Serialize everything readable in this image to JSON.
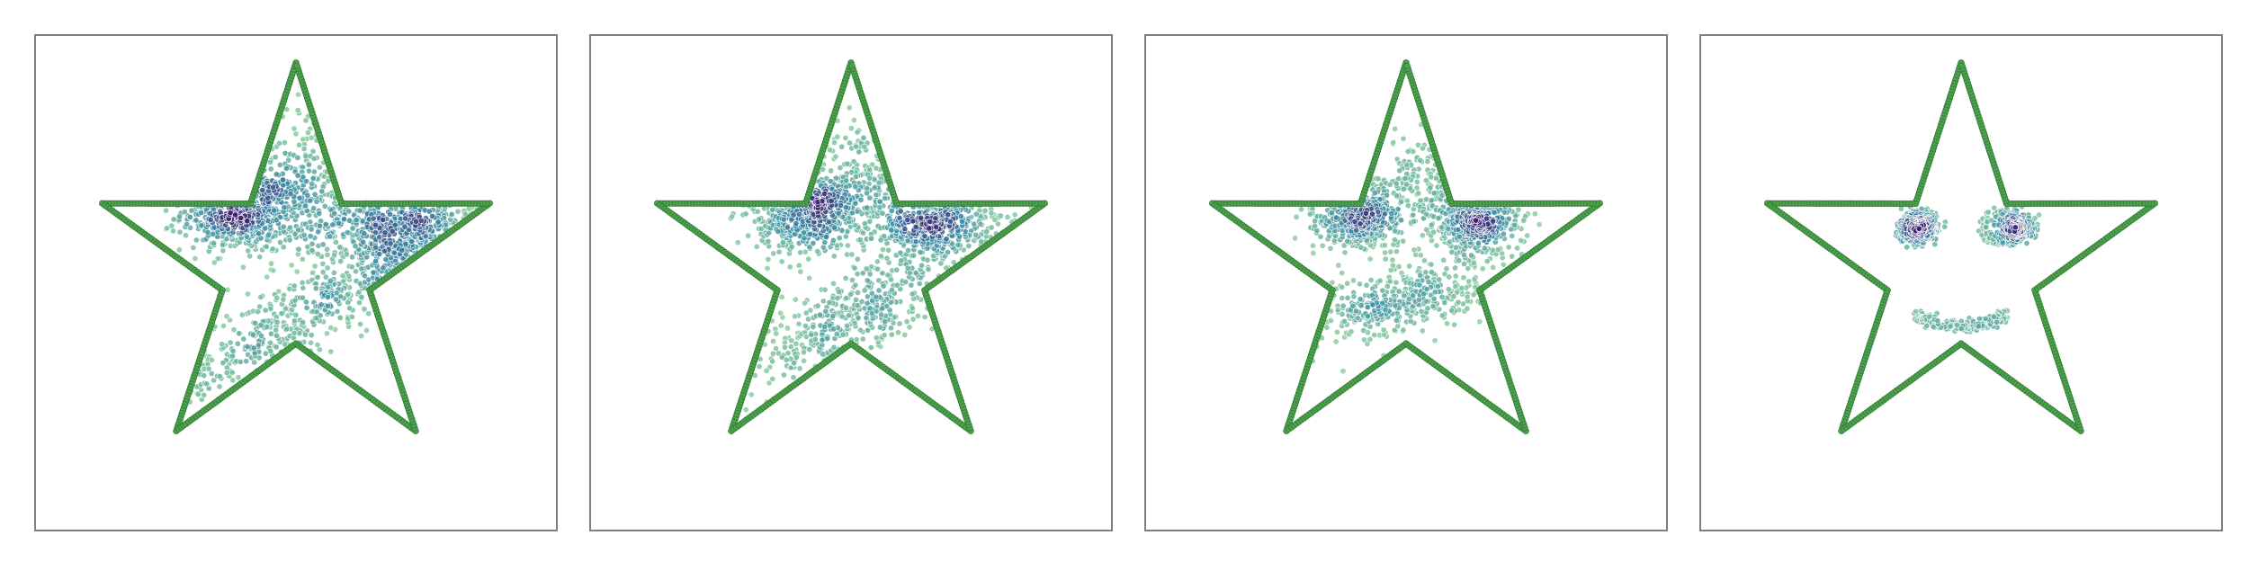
{
  "colors": {
    "outline_fill": "#4fa04f",
    "outline_edge": "#2e7d32",
    "density_low": "#8fcf9e",
    "density_mid": "#3b8ea5",
    "density_high": "#3b1c6e",
    "frame": "#7f7f7f"
  },
  "chart_data": [
    {
      "type": "scatter",
      "title": "",
      "xlabel": "",
      "ylabel": "",
      "xlim": [
        -1.3,
        1.3
      ],
      "ylim": [
        -1.25,
        1.25
      ],
      "grid": false,
      "legend": "none",
      "outline": {
        "shape": "five-point-star",
        "outer_radius": 1.0,
        "inner_radius": 0.38
      },
      "clusters": [
        {
          "cx": -0.26,
          "cy": 0.27,
          "sx": 0.15,
          "sy": 0.1,
          "n": 520
        },
        {
          "cx": 0.5,
          "cy": 0.2,
          "sx": 0.2,
          "sy": 0.12,
          "n": 520
        },
        {
          "cx": 0.0,
          "cy": -0.25,
          "sx": 0.38,
          "sy": 0.1,
          "n": 420,
          "tilt": 0.55
        },
        {
          "cx": 0.15,
          "cy": 0.45,
          "sx": 0.22,
          "sy": 0.18,
          "n": 200
        }
      ]
    },
    {
      "type": "scatter",
      "title": "",
      "xlabel": "",
      "ylabel": "",
      "xlim": [
        -1.3,
        1.3
      ],
      "ylim": [
        -1.25,
        1.25
      ],
      "grid": false,
      "legend": "none",
      "outline": {
        "shape": "five-point-star",
        "outer_radius": 1.0,
        "inner_radius": 0.38
      },
      "clusters": [
        {
          "cx": -0.24,
          "cy": 0.27,
          "sx": 0.14,
          "sy": 0.1,
          "n": 500
        },
        {
          "cx": 0.42,
          "cy": 0.22,
          "sx": 0.17,
          "sy": 0.11,
          "n": 480
        },
        {
          "cx": 0.02,
          "cy": -0.25,
          "sx": 0.32,
          "sy": 0.1,
          "n": 400,
          "tilt": 0.45
        },
        {
          "cx": 0.1,
          "cy": 0.45,
          "sx": 0.18,
          "sy": 0.15,
          "n": 180
        }
      ]
    },
    {
      "type": "scatter",
      "title": "",
      "xlabel": "",
      "ylabel": "",
      "xlim": [
        -1.3,
        1.3
      ],
      "ylim": [
        -1.25,
        1.25
      ],
      "grid": false,
      "legend": "none",
      "outline": {
        "shape": "five-point-star",
        "outer_radius": 1.0,
        "inner_radius": 0.38
      },
      "clusters": [
        {
          "cx": -0.22,
          "cy": 0.24,
          "sx": 0.11,
          "sy": 0.09,
          "n": 450
        },
        {
          "cx": 0.33,
          "cy": 0.22,
          "sx": 0.12,
          "sy": 0.09,
          "n": 450
        },
        {
          "cx": -0.02,
          "cy": -0.18,
          "sx": 0.24,
          "sy": 0.08,
          "n": 380,
          "tilt": 0.2
        },
        {
          "cx": 0.12,
          "cy": 0.44,
          "sx": 0.1,
          "sy": 0.14,
          "n": 120
        }
      ]
    },
    {
      "type": "scatter",
      "title": "",
      "xlabel": "",
      "ylabel": "",
      "xlim": [
        -1.3,
        1.3
      ],
      "ylim": [
        -1.25,
        1.25
      ],
      "grid": false,
      "legend": "none",
      "outline": {
        "shape": "five-point-star",
        "outer_radius": 1.0,
        "inner_radius": 0.38
      },
      "clusters": [
        {
          "cx": -0.21,
          "cy": 0.19,
          "sx": 0.045,
          "sy": 0.035,
          "n": 280
        },
        {
          "cx": 0.27,
          "cy": 0.19,
          "sx": 0.045,
          "sy": 0.035,
          "n": 280
        },
        {
          "cx": -0.21,
          "cy": 0.19,
          "ring": 0.085,
          "sx": 0.012,
          "sy": 0.012,
          "n": 110
        },
        {
          "cx": 0.2,
          "cy": 0.19,
          "ring": 0.09,
          "sx": 0.012,
          "sy": 0.012,
          "n": 110
        },
        {
          "cx": 0.0,
          "cy": -0.3,
          "smile": 0.24,
          "sx": 0.02,
          "sy": 0.015,
          "n": 220
        }
      ]
    }
  ]
}
